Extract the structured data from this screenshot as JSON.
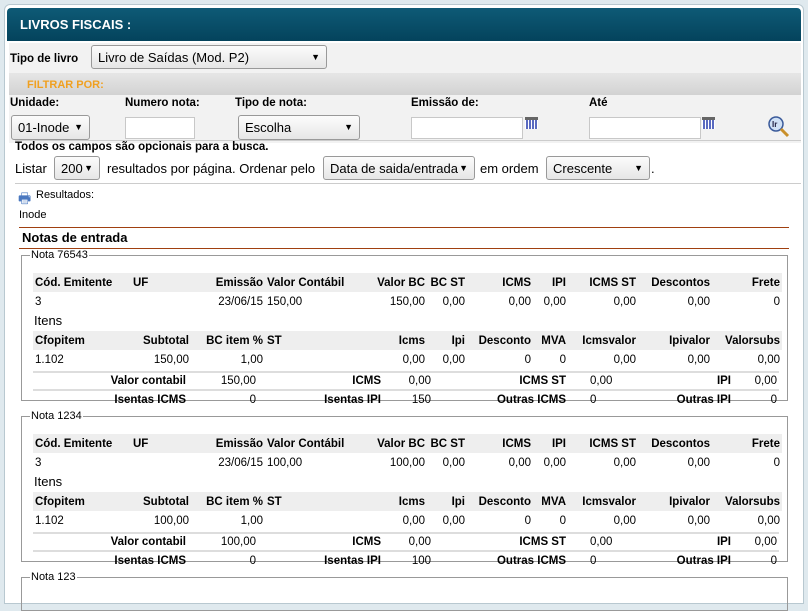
{
  "header": {
    "title": "LIVROS FISCAIS :"
  },
  "tipo_livro": {
    "label": "Tipo de livro",
    "value": "Livro de Saídas (Mod. P2)"
  },
  "filter": {
    "title": "FILTRAR POR:",
    "unidade": {
      "label": "Unidade:",
      "value": "01-Inode"
    },
    "numero": {
      "label": "Numero nota:",
      "value": ""
    },
    "tipo_nota": {
      "label": "Tipo de nota:",
      "value": "Escolha"
    },
    "emissao": {
      "label": "Emissão de:",
      "value": ""
    },
    "ate": {
      "label": "Até",
      "value": ""
    },
    "hint": "Todos os campos são opcionais para a busca."
  },
  "listing": {
    "listar": "Listar",
    "per_page": "200",
    "per_page_text": "resultados por página. Ordenar pelo",
    "order_by": "Data de saida/entrada",
    "em_ordem": "em ordem",
    "order": "Crescente",
    "dot": "."
  },
  "results": {
    "label": "Resultados:",
    "unit": "Inode",
    "section": "Notas de entrada"
  },
  "note_headers": [
    "Cód. Emitente",
    "UF",
    "Emissão",
    "Valor Contábil",
    "Valor BC",
    "BC ST",
    "ICMS",
    "IPI",
    "ICMS ST",
    "Descontos",
    "Frete"
  ],
  "item_headers": [
    "Cfopitem",
    "Subtotal",
    "BC item %",
    "ST",
    "Icms",
    "Ipi",
    "Desconto",
    "MVA",
    "Icmsvalor",
    "Ipivalor",
    "Valorsubs"
  ],
  "itens_label": "Itens",
  "summary_labels": [
    "Valor contabil",
    "ICMS",
    "ICMS ST",
    "IPI",
    "Isentas ICMS",
    "Isentas IPI",
    "Outras ICMS",
    "Outras IPI"
  ],
  "notes": [
    {
      "legend": "Nota 76543",
      "row": [
        "3",
        "",
        "23/06/15",
        "150,00",
        "150,00",
        "0,00",
        "0,00",
        "0,00",
        "0,00",
        "0,00",
        "0"
      ],
      "items": [
        [
          "1.102",
          "150,00",
          "1,00",
          "",
          "0,00",
          "0,00",
          "0",
          "0",
          "0,00",
          "0,00",
          "0,00"
        ]
      ],
      "summary": [
        "150,00",
        "0,00",
        "0,00",
        "0,00",
        "0",
        "150",
        "0",
        "0"
      ]
    },
    {
      "legend": "Nota 1234",
      "row": [
        "3",
        "",
        "23/06/15",
        "100,00",
        "100,00",
        "0,00",
        "0,00",
        "0,00",
        "0,00",
        "0,00",
        "0"
      ],
      "items": [
        [
          "1.102",
          "100,00",
          "1,00",
          "",
          "0,00",
          "0,00",
          "0",
          "0",
          "0,00",
          "0,00",
          "0,00"
        ]
      ],
      "summary": [
        "100,00",
        "0,00",
        "0,00",
        "0,00",
        "0",
        "100",
        "0",
        "0"
      ]
    },
    {
      "legend": "Nota 123"
    }
  ]
}
